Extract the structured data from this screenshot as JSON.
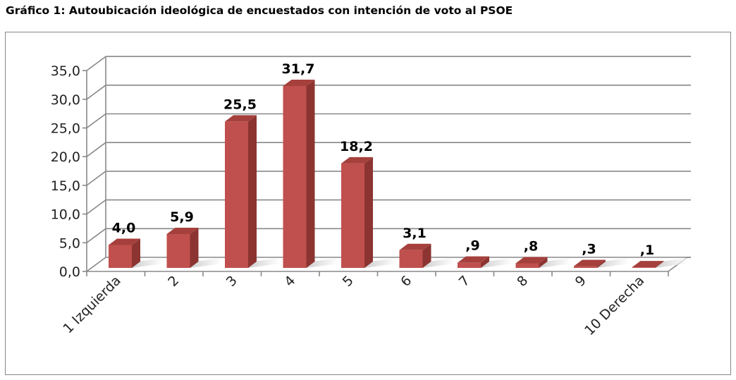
{
  "chart_data": {
    "type": "bar",
    "title": "Gráfico 1: Autoubicación ideológica de encuestados con intención de voto al PSOE",
    "categories": [
      "1 Izquierda",
      "2",
      "3",
      "4",
      "5",
      "6",
      "7",
      "8",
      "9",
      "10 Derecha"
    ],
    "values": [
      4.0,
      5.9,
      25.5,
      31.7,
      18.2,
      3.1,
      0.9,
      0.8,
      0.3,
      0.1
    ],
    "data_labels": [
      "4,0",
      "5,9",
      "25,5",
      "31,7",
      "18,2",
      "3,1",
      ",9",
      ",8",
      ",3",
      ",1"
    ],
    "yticks": [
      "0,0",
      "5,0",
      "10,0",
      "15,0",
      "20,0",
      "25,0",
      "30,0",
      "35,0"
    ],
    "ylim": [
      0,
      35
    ],
    "grid": true,
    "bar_color": "#c0504d",
    "xlabel": "",
    "ylabel": ""
  }
}
